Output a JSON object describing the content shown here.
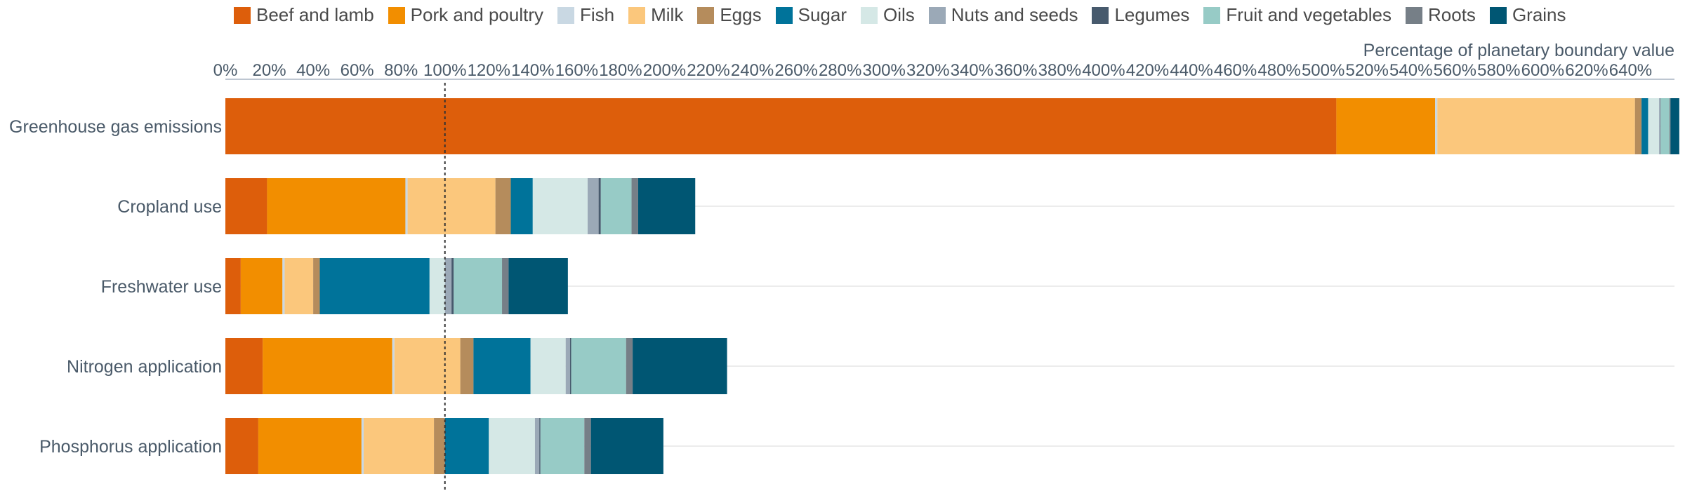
{
  "chart_data": {
    "type": "bar",
    "orientation": "horizontal",
    "stacked": true,
    "xlabel": "Percentage of planetary boundary value",
    "xlim": [
      0,
      660
    ],
    "x_ticks": [
      0,
      20,
      40,
      60,
      80,
      100,
      120,
      140,
      160,
      180,
      200,
      220,
      240,
      260,
      280,
      300,
      320,
      340,
      360,
      380,
      400,
      420,
      440,
      460,
      480,
      500,
      520,
      540,
      560,
      580,
      600,
      620,
      640
    ],
    "x_tick_labels": [
      "0%",
      "20%",
      "40%",
      "60%",
      "80%",
      "100%",
      "120%",
      "140%",
      "160%",
      "180%",
      "200%",
      "220%",
      "240%",
      "260%",
      "280%",
      "300%",
      "320%",
      "340%",
      "360%",
      "380%",
      "400%",
      "420%",
      "440%",
      "460%",
      "480%",
      "500%",
      "520%",
      "540%",
      "560%",
      "580%",
      "600%",
      "620%",
      "640%"
    ],
    "reference_line": 100,
    "legend_position": "top",
    "categories": [
      "Greenhouse gas emissions",
      "Cropland use",
      "Freshwater use",
      "Nitrogen application",
      "Phosphorus application"
    ],
    "series": [
      {
        "name": "Beef and lamb",
        "color": "#dd5e0b",
        "values": [
          506,
          19,
          7,
          17,
          15
        ]
      },
      {
        "name": "Pork and poultry",
        "color": "#f28e00",
        "values": [
          45,
          63,
          19,
          59,
          47
        ]
      },
      {
        "name": "Fish",
        "color": "#c9d8e3",
        "values": [
          1,
          1,
          1,
          1,
          1
        ]
      },
      {
        "name": "Milk",
        "color": "#fbc77c",
        "values": [
          90,
          40,
          13,
          30,
          32
        ]
      },
      {
        "name": "Eggs",
        "color": "#b58c5c",
        "values": [
          3,
          7,
          3,
          6,
          5
        ]
      },
      {
        "name": "Sugar",
        "color": "#00739a",
        "values": [
          3,
          10,
          50,
          26,
          20
        ]
      },
      {
        "name": "Oils",
        "color": "#d5e8e6",
        "values": [
          5,
          25,
          7,
          16,
          21
        ]
      },
      {
        "name": "Nuts and seeds",
        "color": "#9ba9b7",
        "values": [
          0.5,
          5,
          3,
          2,
          2
        ]
      },
      {
        "name": "Legumes",
        "color": "#475a6d",
        "values": [
          0.2,
          1,
          1,
          0.5,
          0.5
        ]
      },
      {
        "name": "Fruit and vegetables",
        "color": "#97cbc6",
        "values": [
          4,
          14,
          22,
          25,
          20
        ]
      },
      {
        "name": "Roots",
        "color": "#767f87",
        "values": [
          0.5,
          3,
          3,
          3,
          3
        ]
      },
      {
        "name": "Grains",
        "color": "#005673",
        "values": [
          4,
          26,
          27,
          43,
          33
        ]
      }
    ]
  }
}
